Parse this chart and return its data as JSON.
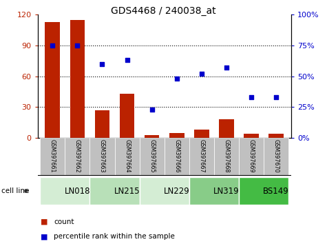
{
  "title": "GDS4468 / 240038_at",
  "categories": [
    "GSM397661",
    "GSM397662",
    "GSM397663",
    "GSM397664",
    "GSM397665",
    "GSM397666",
    "GSM397667",
    "GSM397668",
    "GSM397669",
    "GSM397670"
  ],
  "bar_values": [
    113,
    115,
    27,
    43,
    3,
    5,
    8,
    18,
    4,
    4
  ],
  "scatter_values": [
    75,
    75,
    60,
    63,
    23,
    48,
    52,
    57,
    33,
    33
  ],
  "cell_lines": [
    {
      "label": "LN018",
      "start": 0,
      "end": 2,
      "color": "#d4edd4"
    },
    {
      "label": "LN215",
      "start": 2,
      "end": 4,
      "color": "#b8e0b8"
    },
    {
      "label": "LN229",
      "start": 4,
      "end": 6,
      "color": "#d4edd4"
    },
    {
      "label": "LN319",
      "start": 6,
      "end": 8,
      "color": "#88cc88"
    },
    {
      "label": "BS149",
      "start": 8,
      "end": 10,
      "color": "#44bb44"
    }
  ],
  "bar_color": "#bb2200",
  "scatter_color": "#0000cc",
  "ylim_left": [
    0,
    120
  ],
  "ylim_right": [
    0,
    100
  ],
  "yticks_left": [
    0,
    30,
    60,
    90,
    120
  ],
  "yticks_right": [
    0,
    25,
    50,
    75,
    100
  ],
  "ytick_labels_left": [
    "0",
    "30",
    "60",
    "90",
    "120"
  ],
  "ytick_labels_right": [
    "0%",
    "25%",
    "50%",
    "75%",
    "100%"
  ],
  "legend_count_label": "count",
  "legend_pct_label": "percentile rank within the sample",
  "cell_line_label": "cell line",
  "bg_color": "#ffffff",
  "tick_area_color": "#c0c0c0",
  "grid_color": "#000000"
}
